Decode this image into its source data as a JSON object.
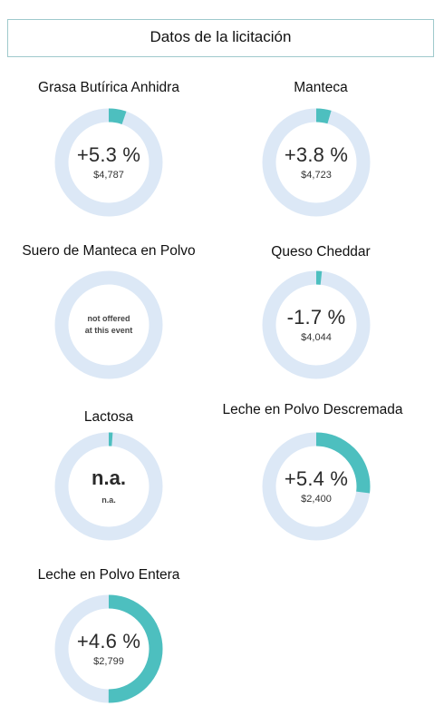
{
  "header": {
    "title": "Datos de la licitación"
  },
  "colors": {
    "track": "#dce8f6",
    "fill": "#4dbfbf",
    "border": "#9fc9cc"
  },
  "products": [
    {
      "name": "Grasa Butírica Anhidra",
      "change": "+5.3 %",
      "price": "$4,787",
      "fill_fraction": 0.053
    },
    {
      "name": "Manteca",
      "change": "+3.8 %",
      "price": "$4,723",
      "fill_fraction": 0.045
    },
    {
      "name": "Suero de Manteca en Polvo",
      "message_line1": "not offered",
      "message_line2": "at this event",
      "fill_fraction": 0
    },
    {
      "name": "Queso Cheddar",
      "change": "-1.7 %",
      "price": "$4,044",
      "fill_fraction": 0.017
    },
    {
      "name": "Lactosa",
      "change": "n.a.",
      "price": "n.a.",
      "fill_fraction": 0.012
    },
    {
      "name": "Leche en Polvo Descremada",
      "change": "+5.4 %",
      "price": "$2,400",
      "fill_fraction": 0.27
    },
    {
      "name": "Leche en Polvo Entera",
      "change": "+4.6 %",
      "price": "$2,799",
      "fill_fraction": 0.5
    }
  ]
}
